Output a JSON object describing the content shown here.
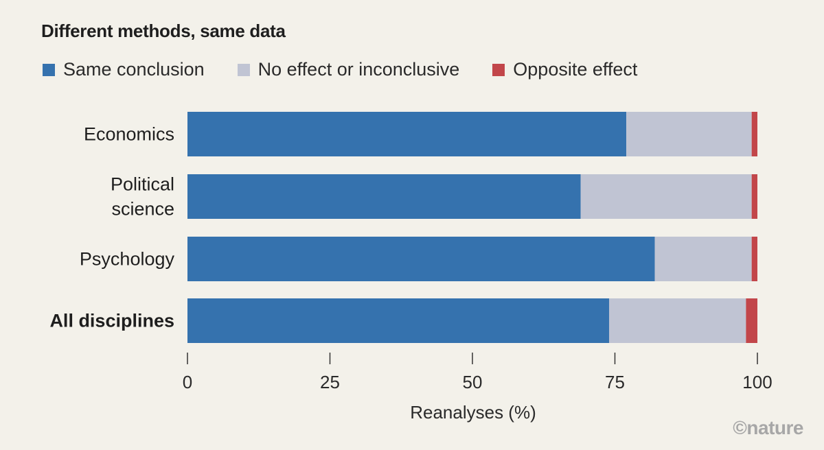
{
  "chart_data": {
    "type": "bar",
    "orientation": "horizontal",
    "stacked": true,
    "title": "Different methods, same data",
    "categories": [
      {
        "lines": [
          "Economics"
        ],
        "bold": false
      },
      {
        "lines": [
          "Political",
          "science"
        ],
        "bold": false
      },
      {
        "lines": [
          "Psychology"
        ],
        "bold": false
      },
      {
        "lines": [
          "All disciplines"
        ],
        "bold": true
      }
    ],
    "series": [
      {
        "name": "Same conclusion",
        "color": "#3572ae",
        "values": [
          77,
          69,
          82,
          74
        ]
      },
      {
        "name": "No effect or inconclusive",
        "color": "#c0c4d3",
        "values": [
          22,
          30,
          17,
          24
        ]
      },
      {
        "name": "Opposite effect",
        "color": "#c2464a",
        "values": [
          1,
          1,
          1,
          2
        ]
      }
    ],
    "xlabel": "Reanalyses (%)",
    "xlim": [
      0,
      100
    ],
    "xticks": [
      0,
      25,
      50,
      75,
      100
    ],
    "legend_position": "top-left",
    "grid": false
  },
  "watermark": "©nature"
}
